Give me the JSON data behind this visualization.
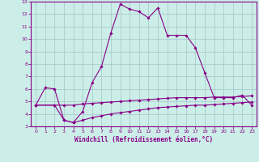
{
  "title": "",
  "xlabel": "Windchill (Refroidissement éolien,°C)",
  "bg_color": "#cceee8",
  "grid_color": "#aacccc",
  "line_color": "#880088",
  "xlim": [
    -0.5,
    23.5
  ],
  "ylim": [
    3,
    13
  ],
  "yticks": [
    3,
    4,
    5,
    6,
    7,
    8,
    9,
    10,
    11,
    12,
    13
  ],
  "xticks": [
    0,
    1,
    2,
    3,
    4,
    5,
    6,
    7,
    8,
    9,
    10,
    11,
    12,
    13,
    14,
    15,
    16,
    17,
    18,
    19,
    20,
    21,
    22,
    23
  ],
  "series1_x": [
    0,
    1,
    2,
    3,
    4,
    5,
    6,
    7,
    8,
    9,
    10,
    11,
    12,
    13,
    14,
    15,
    16,
    17,
    18,
    19,
    20,
    21,
    22,
    23
  ],
  "series1_y": [
    4.7,
    6.1,
    6.0,
    3.5,
    3.3,
    4.2,
    6.5,
    7.8,
    10.5,
    12.8,
    12.4,
    12.2,
    11.7,
    12.5,
    10.3,
    10.3,
    10.3,
    9.3,
    7.3,
    5.3,
    5.3,
    5.3,
    5.5,
    4.7
  ],
  "series2_x": [
    0,
    2,
    3,
    4,
    5,
    6,
    7,
    8,
    9,
    10,
    11,
    12,
    13,
    14,
    15,
    16,
    17,
    18,
    19,
    20,
    21,
    22,
    23
  ],
  "series2_y": [
    4.7,
    4.7,
    4.7,
    4.7,
    4.8,
    4.85,
    4.9,
    4.95,
    5.0,
    5.05,
    5.1,
    5.15,
    5.2,
    5.25,
    5.3,
    5.3,
    5.3,
    5.3,
    5.35,
    5.35,
    5.35,
    5.4,
    5.45
  ],
  "series3_x": [
    0,
    2,
    3,
    4,
    5,
    6,
    7,
    8,
    9,
    10,
    11,
    12,
    13,
    14,
    15,
    16,
    17,
    18,
    19,
    20,
    21,
    22,
    23
  ],
  "series3_y": [
    4.7,
    4.7,
    3.5,
    3.3,
    3.5,
    3.7,
    3.85,
    4.0,
    4.1,
    4.2,
    4.3,
    4.4,
    4.5,
    4.55,
    4.6,
    4.65,
    4.7,
    4.7,
    4.75,
    4.8,
    4.85,
    4.9,
    4.95
  ]
}
